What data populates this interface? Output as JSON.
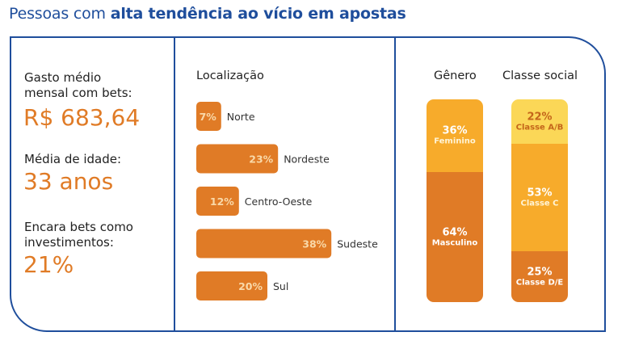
{
  "title": {
    "prefix": "Pessoas com ",
    "bold": "alta tendência ao vício em apostas"
  },
  "stats": {
    "spend_label_line1": "Gasto médio",
    "spend_label_line2": "mensal com bets:",
    "spend_value": "R$ 683,64",
    "age_label": "Média de idade:",
    "age_value": "33 anos",
    "invest_label_line1": "Encara bets como",
    "invest_label_line2": "investimentos:",
    "invest_value": "21%"
  },
  "location": {
    "heading": "Localização"
  },
  "gender": {
    "heading": "Gênero"
  },
  "social": {
    "heading": "Classe social"
  },
  "colors": {
    "title_blue": "#1f4e9c",
    "orange_dark": "#e07b26",
    "orange_mid": "#f7ab2b",
    "yellow": "#fbd757",
    "label_light": "#f9d9a9",
    "label_dark": "#c4651a"
  },
  "chart_data": [
    {
      "type": "bar",
      "orientation": "horizontal",
      "title": "Localização",
      "categories": [
        "Norte",
        "Nordeste",
        "Centro-Oeste",
        "Sudeste",
        "Sul"
      ],
      "values": [
        7,
        23,
        12,
        38,
        20
      ],
      "value_labels": [
        "7%",
        "23%",
        "12%",
        "38%",
        "20%"
      ],
      "unit": "%"
    },
    {
      "type": "bar",
      "orientation": "stacked-vertical",
      "title": "Gênero",
      "categories": [
        "Feminino",
        "Masculino"
      ],
      "values": [
        36,
        64
      ],
      "value_labels": [
        "36%",
        "64%"
      ],
      "unit": "%"
    },
    {
      "type": "bar",
      "orientation": "stacked-vertical",
      "title": "Classe social",
      "categories": [
        "Classe A/B",
        "Classe C",
        "Classe D/E"
      ],
      "values": [
        22,
        53,
        25
      ],
      "value_labels": [
        "22%",
        "53%",
        "25%"
      ],
      "unit": "%"
    }
  ]
}
